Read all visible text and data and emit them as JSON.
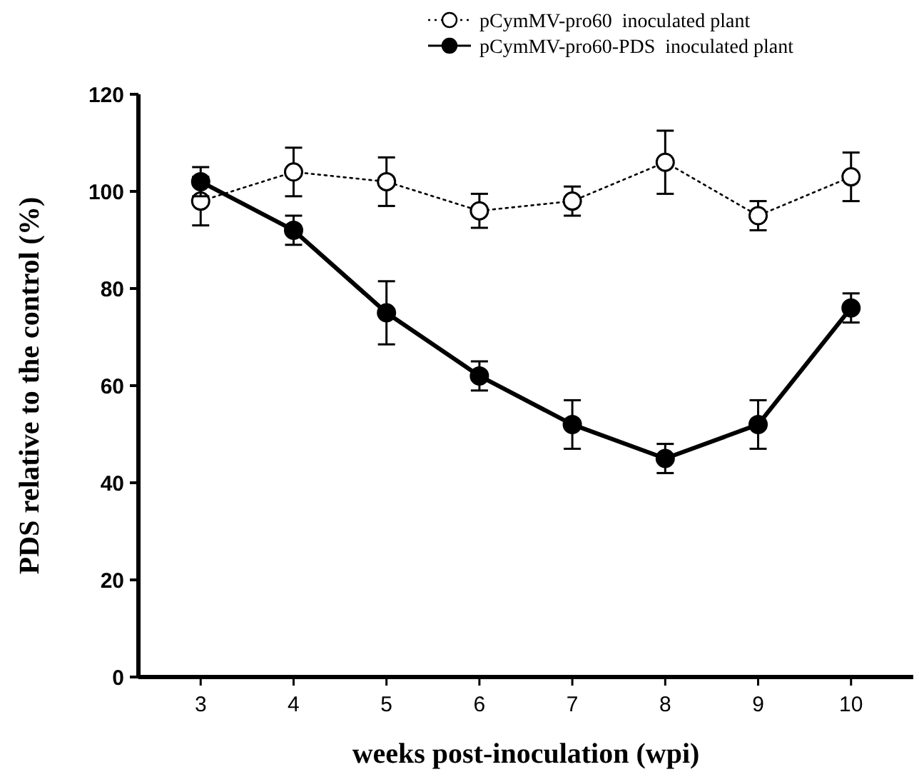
{
  "chart_data": {
    "type": "line",
    "xlabel": "weeks post-inoculation (wpi)",
    "ylabel": "PDS relative to the control (%)",
    "x": [
      3,
      4,
      5,
      6,
      7,
      8,
      9,
      10
    ],
    "xlim": [
      2.33,
      10.67
    ],
    "xticks": [
      3,
      4,
      5,
      6,
      7,
      8,
      9,
      10
    ],
    "ylim": [
      0,
      120
    ],
    "yticks": [
      0,
      20,
      40,
      60,
      80,
      100,
      120
    ],
    "legend": "top right",
    "marker": "circle",
    "grid": false,
    "series": [
      {
        "name": "pCymMV-pro60  inoculated plant",
        "color": "#000000",
        "line_style": "dotted",
        "values": [
          98,
          104,
          102,
          96,
          98,
          106,
          95,
          103
        ],
        "errors": [
          5,
          5,
          5,
          3.5,
          3,
          6.5,
          3,
          5
        ]
      },
      {
        "name": "pCymMV-pro60-PDS  inoculated plant",
        "color": "#000000",
        "line_style": "solid",
        "values": [
          102,
          92,
          75,
          62,
          52,
          45,
          52,
          76
        ],
        "errors": [
          3,
          3,
          6.5,
          3,
          5,
          3,
          5,
          3
        ]
      }
    ]
  }
}
